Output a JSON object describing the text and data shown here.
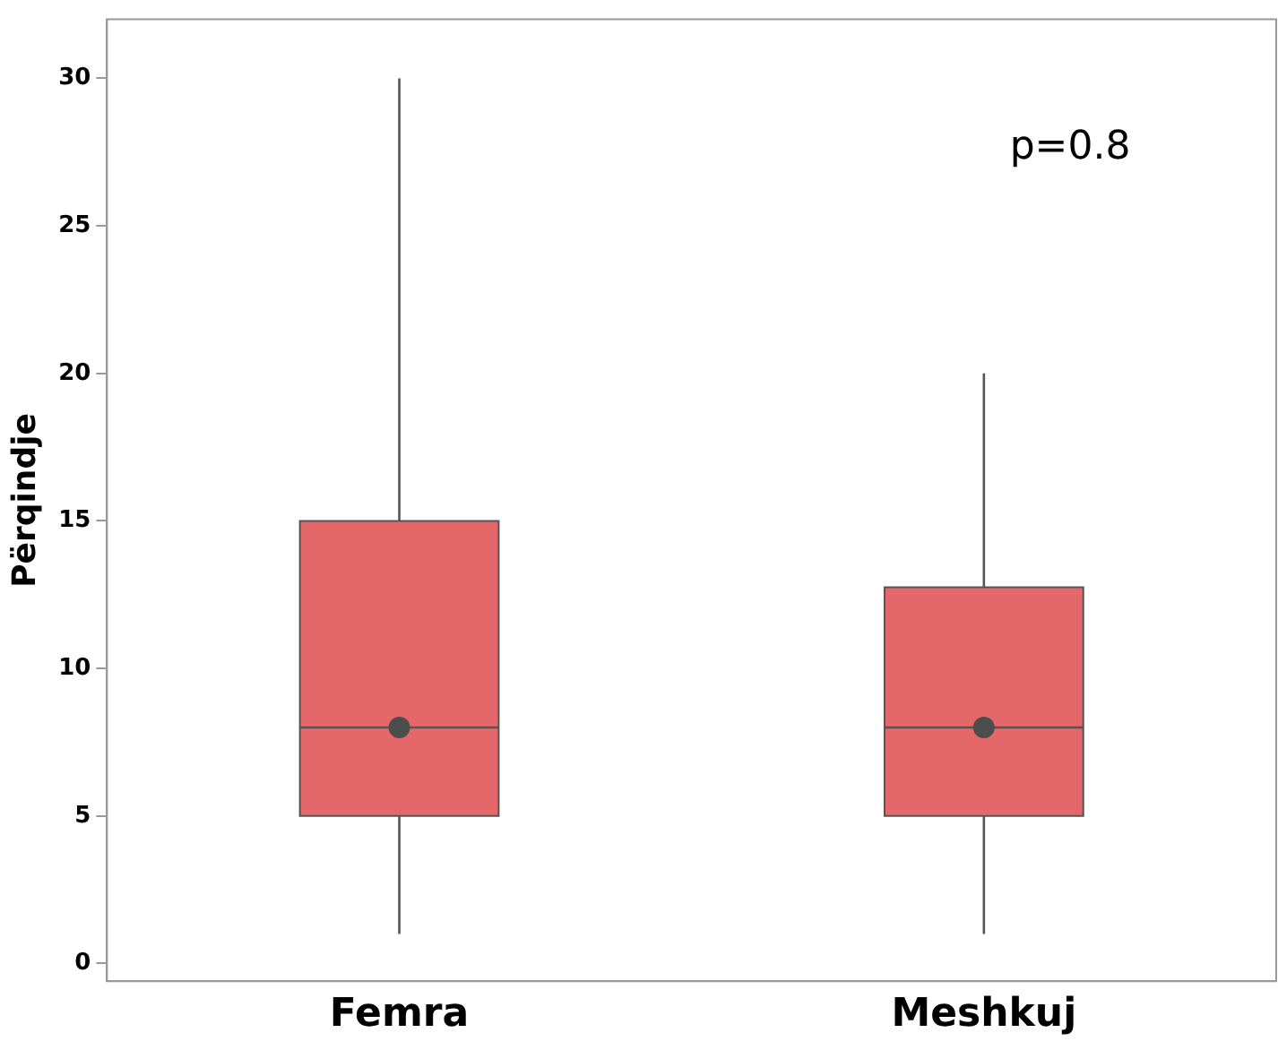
{
  "chart_data": {
    "type": "box",
    "ylabel": "Përqindje",
    "categories": [
      "Femra",
      "Meshkuj"
    ],
    "boxes": [
      {
        "low": 1,
        "q1": 5,
        "median": 8,
        "q3": 15,
        "high": 30,
        "mean": 8
      },
      {
        "low": 1,
        "q1": 5,
        "median": 8,
        "q3": 12.75,
        "high": 20,
        "mean": 8
      }
    ],
    "color": "#e4676a",
    "ylim": [
      -0.6,
      32
    ],
    "yticks": [
      0,
      5,
      10,
      15,
      20,
      25,
      30
    ],
    "grid": false,
    "legend": false,
    "annotations": [
      "p=0.8"
    ]
  }
}
